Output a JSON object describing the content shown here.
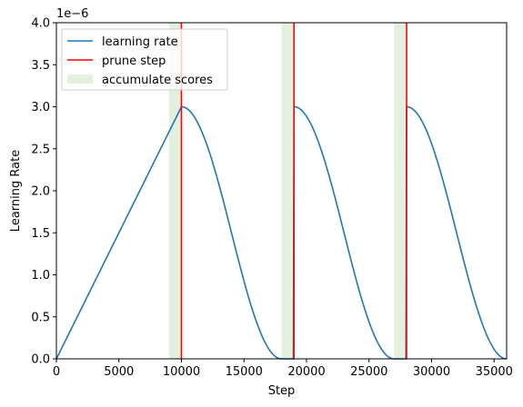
{
  "chart_data": {
    "type": "line",
    "title": "",
    "xlabel": "Step",
    "ylabel": "Learning Rate",
    "y_offset_label": "1e−6",
    "xlim": [
      0,
      36000
    ],
    "ylim": [
      0,
      4.0
    ],
    "y_scale_factor": 1e-06,
    "xticks": [
      0,
      5000,
      10000,
      15000,
      20000,
      25000,
      30000,
      35000
    ],
    "xtick_labels": [
      "0",
      "5000",
      "10000",
      "15000",
      "20000",
      "25000",
      "30000",
      "35000"
    ],
    "yticks": [
      0.0,
      0.5,
      1.0,
      1.5,
      2.0,
      2.5,
      3.0,
      3.5,
      4.0
    ],
    "ytick_labels": [
      "0.0",
      "0.5",
      "1.0",
      "1.5",
      "2.0",
      "2.5",
      "3.0",
      "3.5",
      "4.0"
    ],
    "grid": false,
    "legend_position": "top-left",
    "series": [
      {
        "name": "learning rate",
        "color": "#1f77b4",
        "x": [
          0,
          10000,
          11000,
          12000,
          13000,
          14000,
          15000,
          16000,
          17000,
          18000,
          19000,
          20000,
          21000,
          22000,
          23000,
          24000,
          25000,
          26000,
          27000,
          28000,
          29000,
          30000,
          31000,
          32000,
          33000,
          34000,
          35000,
          36000
        ],
        "y": [
          0.0,
          3.0,
          2.91,
          2.6,
          2.12,
          1.55,
          0.98,
          0.47,
          0.13,
          0.0,
          3.0,
          2.91,
          2.6,
          2.12,
          1.55,
          0.98,
          0.47,
          0.13,
          0.0,
          3.0,
          2.91,
          2.6,
          2.12,
          1.55,
          0.98,
          0.47,
          0.13,
          0.08
        ]
      }
    ],
    "prune_steps": {
      "name": "prune step",
      "color": "#ff0000",
      "x": [
        10000,
        19000,
        28000
      ]
    },
    "accumulate_regions": {
      "name": "accumulate scores",
      "color": "#e3f0e0",
      "ranges": [
        [
          9000,
          10000
        ],
        [
          18000,
          19000
        ],
        [
          27000,
          28000
        ]
      ]
    }
  }
}
